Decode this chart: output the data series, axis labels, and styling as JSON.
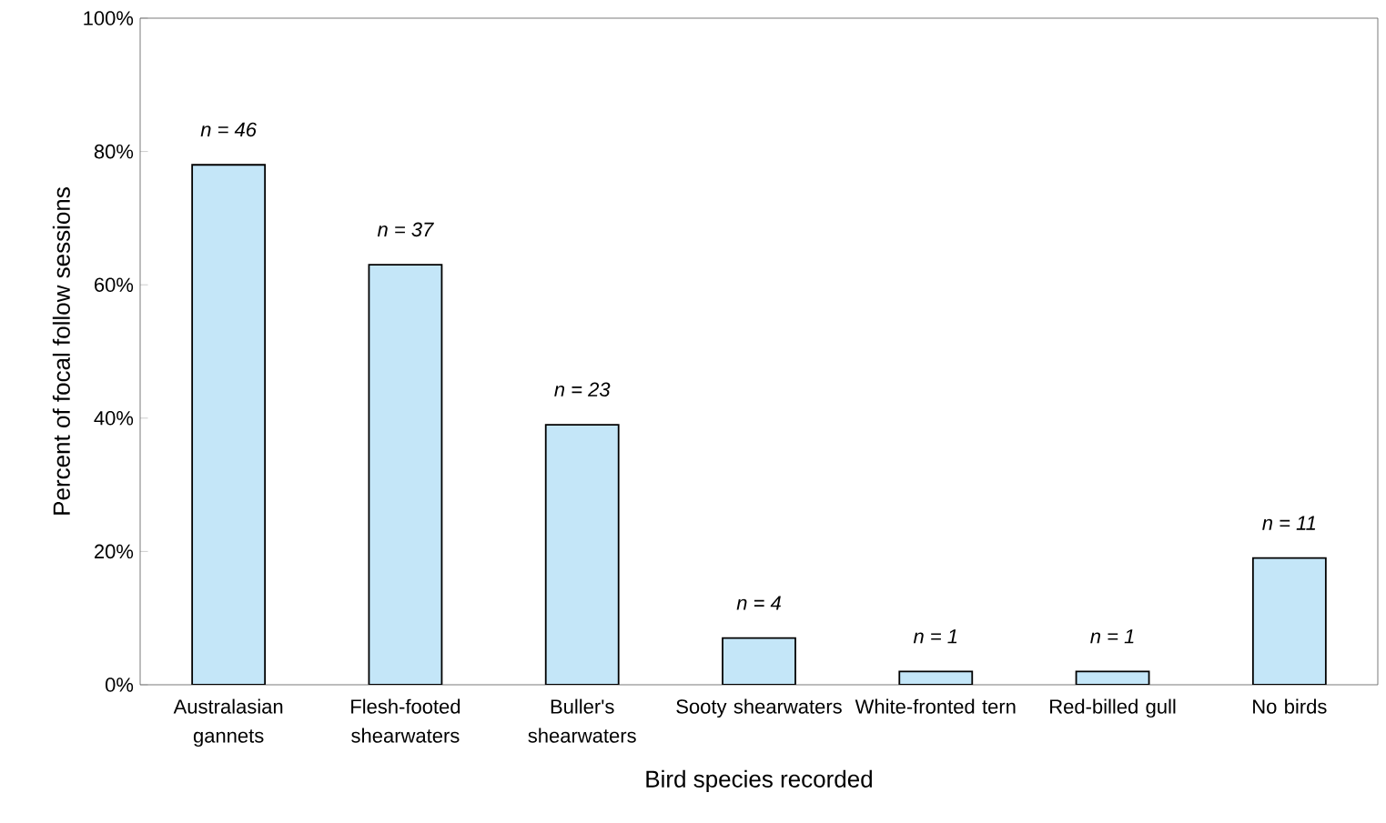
{
  "chart_data": {
    "type": "bar",
    "xlabel": "Bird species recorded",
    "ylabel": "Percent of focal follow sessions",
    "categories": [
      "Australasian gannets",
      "Flesh-footed shearwaters",
      "Buller's shearwaters",
      "Sooty shearwaters",
      "White-fronted tern",
      "Red-billed gull",
      "No birds"
    ],
    "values": [
      78,
      63,
      39,
      7,
      2,
      2,
      19
    ],
    "color": "#c4e6f8",
    "ylim": [
      0,
      100
    ],
    "yticks": [
      {
        "value": 0,
        "label": "0%"
      },
      {
        "value": 20,
        "label": "20%"
      },
      {
        "value": 40,
        "label": "40%"
      },
      {
        "value": 60,
        "label": "60%"
      },
      {
        "value": 80,
        "label": "80%"
      },
      {
        "value": 100,
        "label": "100%"
      }
    ],
    "annotations": [
      {
        "text": "n = 46",
        "x": "Australasian gannets",
        "y": 78
      },
      {
        "text": "n = 37",
        "x": "Flesh-footed shearwaters",
        "y": 63
      },
      {
        "text": "n = 23",
        "x": "Buller's shearwaters",
        "y": 39
      },
      {
        "text": "n = 4",
        "x": "Sooty shearwaters",
        "y": 7
      },
      {
        "text": "n = 1",
        "x": "White-fronted tern",
        "y": 2
      },
      {
        "text": "n = 1",
        "x": "Red-billed gull",
        "y": 2
      },
      {
        "text": "n = 11",
        "x": "No birds",
        "y": 19
      }
    ]
  }
}
